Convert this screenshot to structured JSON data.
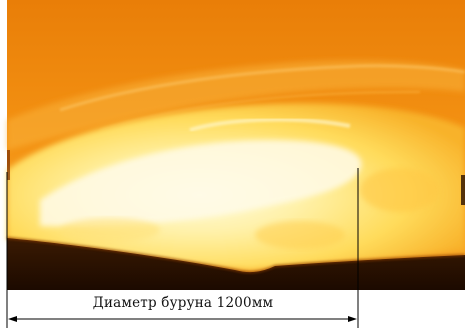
{
  "figure": {
    "caption": "Диаметр буруна 1200мм"
  },
  "colors": {
    "background": "#ffffff",
    "furnace_top": "#f0850a",
    "furnace_mid": "#f7a21a",
    "melt_core": "#fff3b8",
    "melt_edge": "#ffd24a",
    "dark_floor": "#2a1200",
    "dimension_line": "#000000"
  }
}
